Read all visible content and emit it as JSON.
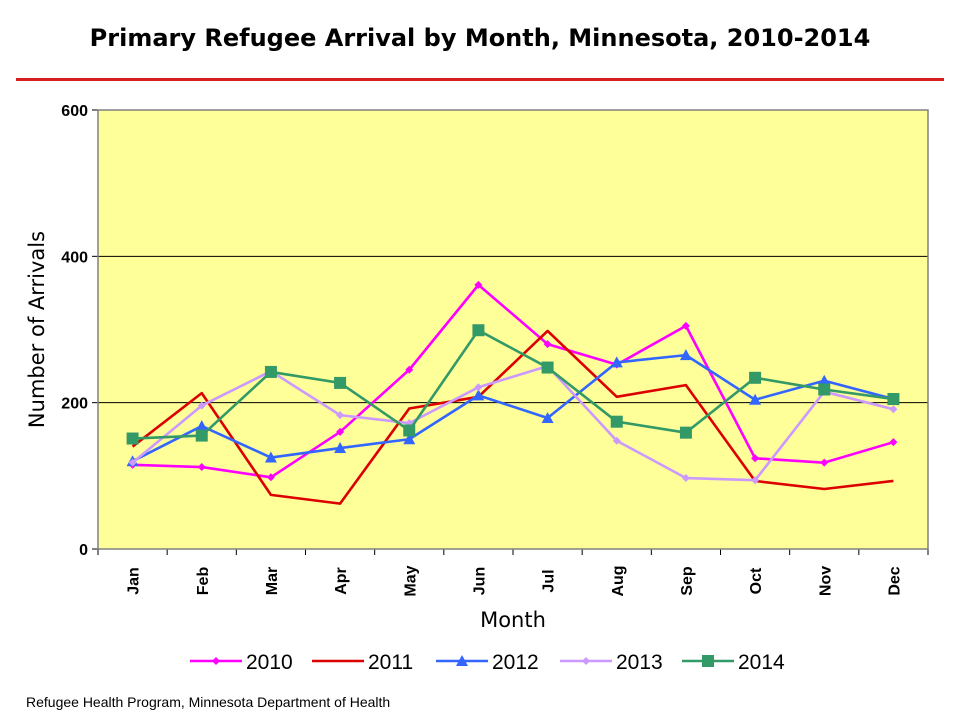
{
  "title": "Primary Refugee Arrival by Month, Minnesota, 2010-2014",
  "footer": "Refugee Health Program, Minnesota Department of Health",
  "chart_data": {
    "type": "line",
    "title": "Primary Refugee Arrival by Month, Minnesota, 2010-2014",
    "xlabel": "Month",
    "ylabel": "Number of Arrivals",
    "ylim": [
      0,
      600
    ],
    "yticks": [
      0,
      200,
      400,
      600
    ],
    "grid": true,
    "legend_position": "bottom",
    "plot_background": "#ffff99",
    "categories": [
      "Jan",
      "Feb",
      "Mar",
      "Apr",
      "May",
      "Jun",
      "Jul",
      "Aug",
      "Sep",
      "Oct",
      "Nov",
      "Dec"
    ],
    "series": [
      {
        "name": "2010",
        "color": "#ff00ff",
        "marker": "diamond",
        "values": [
          115,
          112,
          98,
          160,
          245,
          361,
          280,
          252,
          305,
          124,
          118,
          146
        ]
      },
      {
        "name": "2011",
        "color": "#dd0000",
        "marker": "none",
        "values": [
          140,
          213,
          74,
          62,
          192,
          208,
          298,
          208,
          224,
          93,
          82,
          93
        ]
      },
      {
        "name": "2012",
        "color": "#3366ff",
        "marker": "triangle",
        "values": [
          120,
          168,
          125,
          138,
          150,
          210,
          179,
          255,
          265,
          204,
          230,
          205
        ]
      },
      {
        "name": "2013",
        "color": "#cc99ff",
        "marker": "diamond",
        "values": [
          118,
          196,
          243,
          183,
          172,
          221,
          250,
          148,
          97,
          94,
          215,
          191
        ]
      },
      {
        "name": "2014",
        "color": "#339966",
        "marker": "square",
        "values": [
          151,
          155,
          242,
          227,
          162,
          299,
          248,
          174,
          159,
          234,
          218,
          205
        ]
      }
    ]
  }
}
